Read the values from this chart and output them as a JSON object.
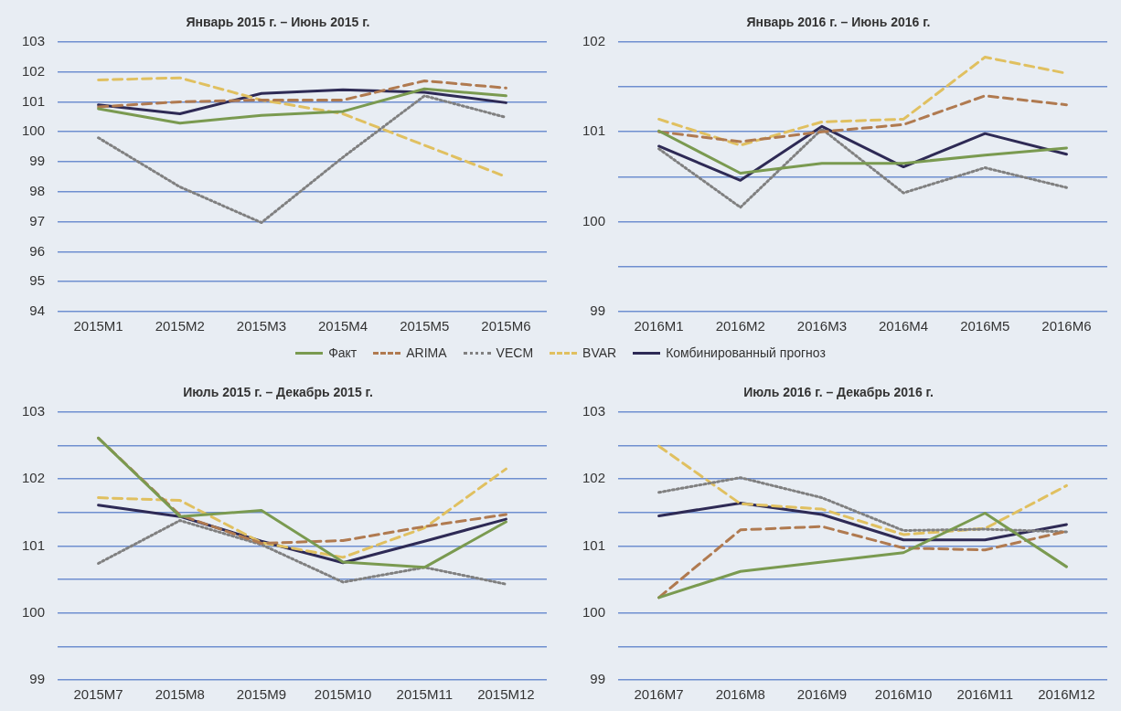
{
  "chart_data": [
    {
      "type": "line",
      "title": "Январь 2015 г. – Июнь 2015 г.",
      "categories": [
        "2015M1",
        "2015M2",
        "2015M3",
        "2015M4",
        "2015M5",
        "2015M6"
      ],
      "ylim": [
        94,
        103
      ],
      "yticks": [
        94,
        95,
        96,
        97,
        98,
        99,
        100,
        101,
        102,
        103
      ],
      "grid": "y",
      "legend": "bottom",
      "series": [
        {
          "name": "Факт",
          "color": "#7a9a50",
          "line_style": "solid",
          "values": [
            100.77,
            100.29,
            100.55,
            100.68,
            101.43,
            101.2
          ]
        },
        {
          "name": "ARIMA",
          "color": "#b07a50",
          "line_style": "dashed",
          "values": [
            100.83,
            101.0,
            101.06,
            101.06,
            101.7,
            101.46
          ]
        },
        {
          "name": "VECM",
          "color": "#808080",
          "line_style": "dotted",
          "values": [
            99.8,
            98.16,
            96.97,
            99.15,
            101.2,
            100.48
          ]
        },
        {
          "name": "BVAR",
          "color": "#e0c060",
          "line_style": "dashed",
          "values": [
            101.73,
            101.8,
            101.06,
            100.6,
            99.55,
            98.5
          ]
        },
        {
          "name": "Комбинированный прогноз",
          "color": "#2e2a55",
          "line_style": "solid",
          "values": [
            100.9,
            100.6,
            101.28,
            101.4,
            101.32,
            100.97
          ]
        }
      ]
    },
    {
      "type": "line",
      "title": "Январь 2016 г. – Июнь 2016 г.",
      "categories": [
        "2016M1",
        "2016M2",
        "2016M3",
        "2016M4",
        "2016M5",
        "2016M6"
      ],
      "ylim": [
        99,
        102
      ],
      "yticks": [
        99,
        {
          "value": 99.5,
          "label": null
        },
        100,
        {
          "value": 100.5,
          "label": null
        },
        101,
        {
          "value": 101.5,
          "label": null
        },
        102
      ],
      "grid": "y",
      "series": [
        {
          "color": "#7a9a50",
          "line_style": "solid",
          "values": [
            101.01,
            100.54,
            100.65,
            100.65,
            100.74,
            100.82
          ]
        },
        {
          "color": "#b07a50",
          "line_style": "dashed",
          "values": [
            101.0,
            100.89,
            101.0,
            101.08,
            101.4,
            101.3
          ]
        },
        {
          "color": "#808080",
          "line_style": "dotted",
          "values": [
            100.81,
            100.16,
            101.03,
            100.32,
            100.6,
            100.38
          ]
        },
        {
          "color": "#e0c060",
          "line_style": "dashed",
          "values": [
            101.14,
            100.85,
            101.11,
            101.14,
            101.83,
            101.65
          ]
        },
        {
          "color": "#2e2a55",
          "line_style": "solid",
          "values": [
            100.84,
            100.46,
            101.06,
            100.61,
            100.98,
            100.75
          ]
        }
      ]
    },
    {
      "type": "line",
      "title": "Июль 2015 г. – Декабрь 2015 г.",
      "categories": [
        "2015M7",
        "2015M8",
        "2015M9",
        "2015M10",
        "2015M11",
        "2015M12"
      ],
      "ylim": [
        99,
        103
      ],
      "yticks": [
        99,
        {
          "value": 99.5,
          "label": null
        },
        100,
        {
          "value": 100.5,
          "label": null
        },
        101,
        {
          "value": 101.5,
          "label": null
        },
        102,
        {
          "value": 102.5,
          "label": null
        },
        103
      ],
      "grid": "y",
      "series": [
        {
          "color": "#7a9a50",
          "line_style": "solid",
          "values": [
            102.61,
            101.44,
            101.53,
            100.76,
            100.68,
            101.36
          ]
        },
        {
          "color": "#b07a50",
          "line_style": "dashed",
          "values": [
            102.61,
            101.46,
            101.04,
            101.08,
            101.29,
            101.47
          ]
        },
        {
          "color": "#808080",
          "line_style": "dotted",
          "values": [
            100.74,
            101.38,
            101.02,
            100.46,
            100.68,
            100.43
          ]
        },
        {
          "color": "#e0c060",
          "line_style": "dashed",
          "values": [
            101.72,
            101.68,
            101.05,
            100.83,
            101.27,
            102.15
          ]
        },
        {
          "color": "#2e2a55",
          "line_style": "solid",
          "values": [
            101.61,
            101.44,
            101.07,
            100.75,
            101.07,
            101.4
          ]
        }
      ]
    },
    {
      "type": "line",
      "title": "Июль 2016 г. – Декабрь 2016 г.",
      "categories": [
        "2016M7",
        "2016M8",
        "2016M9",
        "2016M10",
        "2016M11",
        "2016M12"
      ],
      "ylim": [
        99,
        103
      ],
      "yticks": [
        99,
        {
          "value": 99.5,
          "label": null
        },
        100,
        {
          "value": 100.5,
          "label": null
        },
        101,
        {
          "value": 101.5,
          "label": null
        },
        102,
        {
          "value": 102.5,
          "label": null
        },
        103
      ],
      "grid": "y",
      "series": [
        {
          "color": "#7a9a50",
          "line_style": "solid",
          "values": [
            100.23,
            100.62,
            100.76,
            100.9,
            101.49,
            100.69
          ]
        },
        {
          "color": "#b07a50",
          "line_style": "dashed",
          "values": [
            100.23,
            101.24,
            101.29,
            100.97,
            100.94,
            101.22
          ]
        },
        {
          "color": "#808080",
          "line_style": "dotted",
          "values": [
            101.8,
            102.02,
            101.72,
            101.23,
            101.25,
            101.21
          ]
        },
        {
          "color": "#e0c060",
          "line_style": "dashed",
          "values": [
            102.49,
            101.63,
            101.55,
            101.17,
            101.26,
            101.9
          ]
        },
        {
          "color": "#2e2a55",
          "line_style": "solid",
          "values": [
            101.45,
            101.64,
            101.47,
            101.09,
            101.09,
            101.32
          ]
        }
      ]
    }
  ]
}
